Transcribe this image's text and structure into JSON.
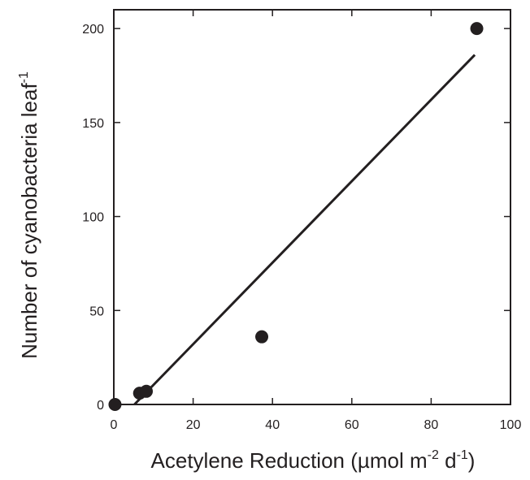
{
  "chart_data": {
    "type": "scatter",
    "title": "",
    "xlabel": {
      "parts": [
        {
          "text": "Acetylene Reduction (µmol m",
          "sup": false
        },
        {
          "text": "-2",
          "sup": true
        },
        {
          "text": " d",
          "sup": false
        },
        {
          "text": "-1",
          "sup": true
        },
        {
          "text": ")",
          "sup": false
        }
      ]
    },
    "ylabel": {
      "parts": [
        {
          "text": "Number of cyanobacteria leaf",
          "sup": false
        },
        {
          "text": "-1",
          "sup": true
        }
      ]
    },
    "xlim": [
      0,
      100
    ],
    "ylim": [
      0,
      210
    ],
    "xticks": [
      0,
      20,
      40,
      60,
      80,
      100
    ],
    "yticks": [
      0,
      50,
      100,
      150,
      200
    ],
    "xtick_labels": [
      "0",
      "20",
      "40",
      "60",
      "80",
      "100"
    ],
    "ytick_labels": [
      "0",
      "50",
      "100",
      "150",
      "200"
    ],
    "grid": false,
    "legend": "none",
    "points": [
      {
        "x": 0.3,
        "y": 0
      },
      {
        "x": 6.5,
        "y": 6
      },
      {
        "x": 8.2,
        "y": 7
      },
      {
        "x": 37.3,
        "y": 36
      },
      {
        "x": 91.5,
        "y": 200
      }
    ],
    "fit_line": {
      "x": [
        5.2,
        91.0
      ],
      "y": [
        0,
        186
      ]
    },
    "colors": {
      "ink": "#231f20",
      "background": "#ffffff"
    }
  }
}
